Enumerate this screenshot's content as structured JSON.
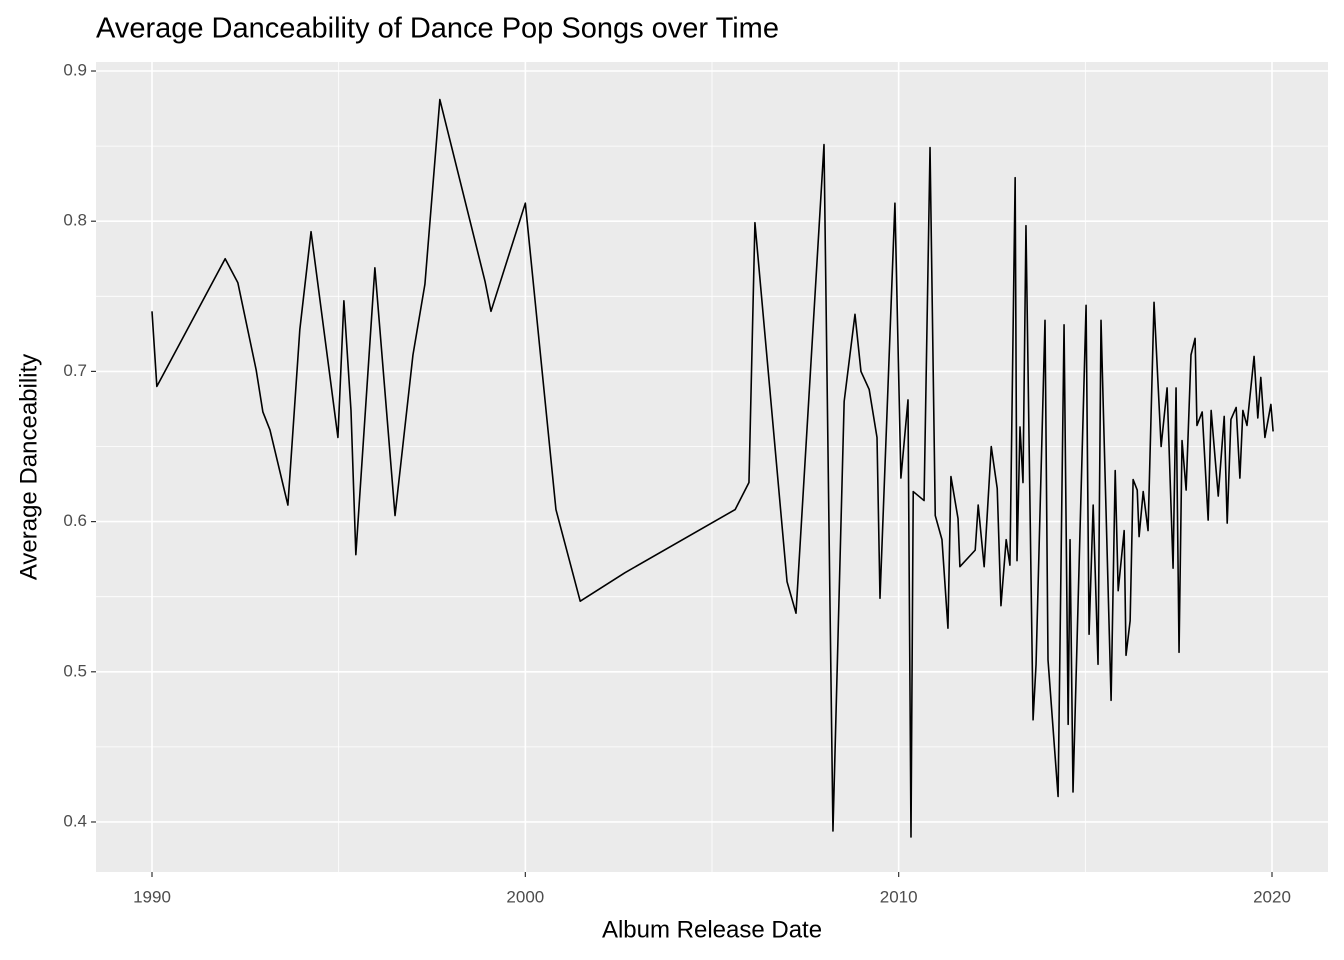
{
  "chart_data": {
    "type": "line",
    "title": "Average Danceability of Dance Pop Songs over Time",
    "x_label": "Album Release Date",
    "y_label": "Average Danceability",
    "color": "#000000",
    "panel_color": "#EBEBEB",
    "grid": true,
    "xlim": [
      1988.5,
      2021.5
    ],
    "ylim": [
      0.3667,
      0.906
    ],
    "xticks": [
      1990,
      2000,
      2010,
      2020
    ],
    "yticks": [
      0.4,
      0.5,
      0.6,
      0.7,
      0.8,
      0.9
    ],
    "x_minor_ticks": [
      1995,
      2005,
      2015
    ],
    "y_minor_ticks": [
      0.45,
      0.55,
      0.65,
      0.75,
      0.85
    ],
    "x": [
      1990.0,
      1990.13,
      1991.96,
      1992.3,
      1992.79,
      1992.97,
      1993.16,
      1993.64,
      1993.96,
      1994.26,
      1994.98,
      1995.14,
      1995.33,
      1995.46,
      1995.97,
      1996.51,
      1996.99,
      1997.31,
      1997.71,
      1998.92,
      1999.08,
      2000.0,
      2000.82,
      2001.47,
      2002.67,
      2005.62,
      2005.99,
      2006.15,
      2007.01,
      2007.25,
      2008.0,
      2008.24,
      2008.54,
      2008.83,
      2008.99,
      2009.21,
      2009.42,
      2009.5,
      2009.9,
      2010.06,
      2010.25,
      2010.33,
      2010.39,
      2010.68,
      2010.84,
      2010.98,
      2011.16,
      2011.32,
      2011.4,
      2011.59,
      2011.64,
      2012.05,
      2012.13,
      2012.29,
      2012.48,
      2012.64,
      2012.74,
      2012.88,
      2012.98,
      2013.12,
      2013.17,
      2013.25,
      2013.33,
      2013.41,
      2013.6,
      2013.68,
      2013.92,
      2014.0,
      2014.27,
      2014.43,
      2014.54,
      2014.59,
      2014.67,
      2015.02,
      2015.1,
      2015.21,
      2015.34,
      2015.42,
      2015.5,
      2015.69,
      2015.8,
      2015.88,
      2016.04,
      2016.09,
      2016.2,
      2016.28,
      2016.39,
      2016.44,
      2016.55,
      2016.68,
      2016.84,
      2017.03,
      2017.19,
      2017.35,
      2017.43,
      2017.51,
      2017.59,
      2017.7,
      2017.83,
      2017.94,
      2017.99,
      2018.13,
      2018.29,
      2018.37,
      2018.56,
      2018.72,
      2018.8,
      2018.9,
      2019.04,
      2019.14,
      2019.22,
      2019.33,
      2019.52,
      2019.62,
      2019.7,
      2019.81,
      2019.97,
      2020.03
    ],
    "values": [
      0.74,
      0.69,
      0.775,
      0.759,
      0.701,
      0.673,
      0.661,
      0.611,
      0.728,
      0.793,
      0.656,
      0.747,
      0.674,
      0.578,
      0.769,
      0.604,
      0.711,
      0.758,
      0.881,
      0.76,
      0.74,
      0.812,
      0.608,
      0.547,
      0.566,
      0.608,
      0.626,
      0.799,
      0.56,
      0.539,
      0.851,
      0.394,
      0.68,
      0.738,
      0.7,
      0.688,
      0.656,
      0.549,
      0.812,
      0.629,
      0.681,
      0.39,
      0.62,
      0.614,
      0.849,
      0.604,
      0.588,
      0.529,
      0.63,
      0.602,
      0.57,
      0.581,
      0.611,
      0.57,
      0.65,
      0.622,
      0.544,
      0.588,
      0.571,
      0.829,
      0.574,
      0.663,
      0.626,
      0.797,
      0.468,
      0.505,
      0.734,
      0.508,
      0.417,
      0.731,
      0.465,
      0.588,
      0.42,
      0.744,
      0.525,
      0.611,
      0.505,
      0.734,
      0.658,
      0.481,
      0.634,
      0.554,
      0.594,
      0.511,
      0.534,
      0.628,
      0.621,
      0.59,
      0.62,
      0.594,
      0.746,
      0.65,
      0.689,
      0.569,
      0.689,
      0.513,
      0.654,
      0.621,
      0.711,
      0.722,
      0.664,
      0.673,
      0.601,
      0.674,
      0.617,
      0.67,
      0.599,
      0.668,
      0.676,
      0.629,
      0.674,
      0.664,
      0.71,
      0.669,
      0.696,
      0.656,
      0.678,
      0.66
    ]
  }
}
